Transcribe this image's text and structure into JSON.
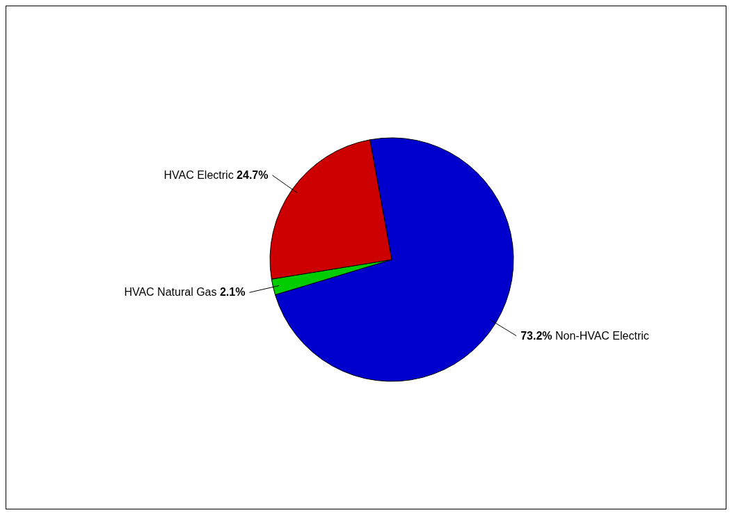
{
  "chart_data": {
    "type": "pie",
    "categories": [
      "Non-HVAC Electric",
      "HVAC Natural Gas",
      "HVAC Electric"
    ],
    "values": [
      73.2,
      2.1,
      24.7
    ],
    "colors": [
      "#0000cc",
      "#00cc00",
      "#cc0000"
    ],
    "value_labels": [
      "73.2%",
      "2.1%",
      "24.7%"
    ]
  }
}
